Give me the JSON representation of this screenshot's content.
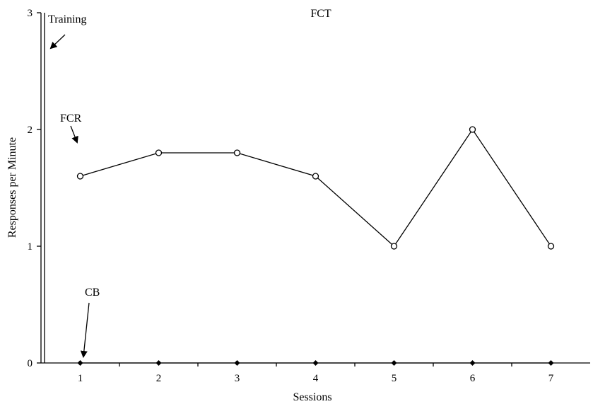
{
  "chart_data": {
    "type": "line",
    "title": "FCT",
    "xlabel": "Sessions",
    "ylabel": "Responses per Minute",
    "categories": [
      1,
      2,
      3,
      4,
      5,
      6,
      7
    ],
    "xlim": [
      0.5,
      7.5
    ],
    "ylim": [
      0,
      3
    ],
    "y_ticks": [
      0,
      1,
      2,
      3
    ],
    "grid": false,
    "series": [
      {
        "name": "FCR",
        "marker": "open-circle",
        "values": [
          1.6,
          1.8,
          1.8,
          1.6,
          1.0,
          2.0,
          1.0
        ]
      },
      {
        "name": "CB",
        "marker": "filled-diamond",
        "values": [
          0,
          0,
          0,
          0,
          0,
          0,
          0
        ]
      }
    ],
    "annotations": [
      {
        "label": "Training",
        "points_to": "phase line"
      },
      {
        "label": "FCR",
        "points_to": "FCR series"
      },
      {
        "label": "CB",
        "points_to": "CB series"
      }
    ]
  }
}
